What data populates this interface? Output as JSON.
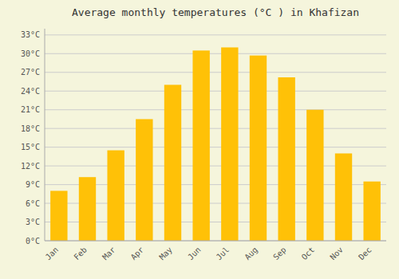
{
  "chart_data": {
    "type": "bar",
    "title": "Average monthly temperatures (°C ) in Khafizan",
    "categories": [
      "Jan",
      "Feb",
      "Mar",
      "Apr",
      "May",
      "Jun",
      "Jul",
      "Aug",
      "Sep",
      "Oct",
      "Nov",
      "Dec"
    ],
    "values": [
      8.0,
      10.2,
      14.5,
      19.5,
      25.0,
      30.5,
      31.0,
      29.7,
      26.2,
      21.0,
      14.0,
      9.5
    ],
    "color": "#FFC107",
    "ylim": [
      0,
      34
    ],
    "yticks": [
      {
        "value": 0,
        "label": "0°C"
      },
      {
        "value": 3,
        "label": "3°C"
      },
      {
        "value": 6,
        "label": "6°C"
      },
      {
        "value": 9,
        "label": "9°C"
      },
      {
        "value": 12,
        "label": "12°C"
      },
      {
        "value": 15,
        "label": "15°C"
      },
      {
        "value": 18,
        "label": "18°C"
      },
      {
        "value": 21,
        "label": "21°C"
      },
      {
        "value": 24,
        "label": "24°C"
      },
      {
        "value": 27,
        "label": "27°C"
      },
      {
        "value": 30,
        "label": "30°C"
      },
      {
        "value": 33,
        "label": "33°C"
      }
    ],
    "grid": true
  }
}
